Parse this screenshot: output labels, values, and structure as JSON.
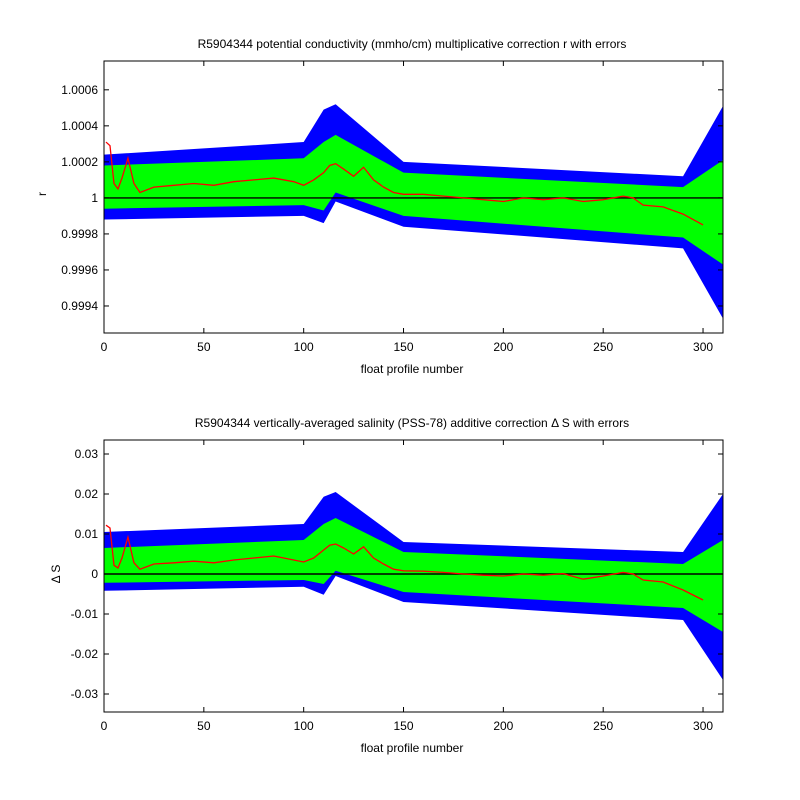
{
  "chart_data": [
    {
      "type": "area",
      "title": "R5904344 potential conductivity (mmho/cm) multiplicative correction r with errors",
      "xlabel": "float profile number",
      "ylabel": "r",
      "xlim": [
        0,
        310
      ],
      "ylim": [
        0.99925,
        1.00076
      ],
      "xticks": [
        0,
        50,
        100,
        150,
        200,
        250,
        300
      ],
      "xtick_labels": [
        "0",
        "50",
        "100",
        "150",
        "200",
        "250",
        "300"
      ],
      "yticks": [
        0.9994,
        0.9996,
        0.9998,
        1.0,
        1.0002,
        1.0004,
        1.0006
      ],
      "ytick_labels": [
        "0.9994",
        "0.9996",
        "0.9998",
        "1",
        "1.0002",
        "1.0004",
        "1.0006"
      ],
      "reference_line": 1.0,
      "grid": false,
      "colors": {
        "outer_band": "#0000ff",
        "inner_band": "#00ff00",
        "correction": "#ff0000",
        "reference": "#000000"
      },
      "series": [
        {
          "x": [
            0,
            100,
            110,
            116,
            150,
            290,
            310
          ],
          "upper": [
            1.00024,
            1.00031,
            1.00049,
            1.00052,
            1.0002,
            1.00012,
            1.00051
          ],
          "lower": [
            0.99988,
            0.9999,
            0.99986,
            0.99998,
            0.99984,
            0.99972,
            0.99933
          ]
        },
        {
          "x": [
            0,
            100,
            110,
            116,
            150,
            290,
            310
          ],
          "upper": [
            1.00018,
            1.00022,
            1.00031,
            1.00035,
            1.00014,
            1.00006,
            1.00021
          ],
          "lower": [
            0.99994,
            0.99996,
            0.99993,
            1.00003,
            0.9999,
            0.99978,
            0.99963
          ]
        },
        {
          "x": [
            1,
            3,
            5,
            7,
            9,
            12,
            15,
            18,
            25,
            35,
            45,
            55,
            65,
            75,
            85,
            95,
            100,
            105,
            110,
            113,
            116,
            120,
            125,
            130,
            135,
            140,
            145,
            150,
            160,
            170,
            180,
            190,
            200,
            210,
            220,
            230,
            240,
            250,
            260,
            265,
            270,
            280,
            290,
            300
          ],
          "values": [
            1.00031,
            1.00029,
            1.00008,
            1.00005,
            1.00011,
            1.00022,
            1.00008,
            1.00003,
            1.00006,
            1.00007,
            1.00008,
            1.00007,
            1.00009,
            1.0001,
            1.00011,
            1.00009,
            1.00007,
            1.0001,
            1.00014,
            1.00018,
            1.00019,
            1.00016,
            1.00012,
            1.00017,
            1.0001,
            1.00006,
            1.00003,
            1.00002,
            1.00002,
            1.00001,
            1.0,
            0.99999,
            0.99998,
            1.0,
            0.99999,
            1.0,
            0.99998,
            0.99999,
            1.00001,
            1.0,
            0.99996,
            0.99995,
            0.99991,
            0.99985
          ]
        }
      ]
    },
    {
      "type": "area",
      "title": "R5904344 vertically-averaged salinity (PSS-78) additive correction Δ S with errors",
      "xlabel": "float profile number",
      "ylabel": "Δ S",
      "xlim": [
        0,
        310
      ],
      "ylim": [
        -0.0345,
        0.0335
      ],
      "xticks": [
        0,
        50,
        100,
        150,
        200,
        250,
        300
      ],
      "xtick_labels": [
        "0",
        "50",
        "100",
        "150",
        "200",
        "250",
        "300"
      ],
      "yticks": [
        -0.03,
        -0.02,
        -0.01,
        0,
        0.01,
        0.02,
        0.03
      ],
      "ytick_labels": [
        "-0.03",
        "-0.02",
        "-0.01",
        "0",
        "0.01",
        "0.02",
        "0.03"
      ],
      "reference_line": 0,
      "grid": false,
      "colors": {
        "outer_band": "#0000ff",
        "inner_band": "#00ff00",
        "correction": "#ff0000",
        "reference": "#000000"
      },
      "series": [
        {
          "x": [
            0,
            100,
            110,
            116,
            150,
            290,
            310
          ],
          "upper": [
            0.0105,
            0.0125,
            0.0193,
            0.0205,
            0.008,
            0.0055,
            0.02
          ],
          "lower": [
            -0.0042,
            -0.0032,
            -0.0052,
            -0.0005,
            -0.007,
            -0.0115,
            -0.0265
          ]
        },
        {
          "x": [
            0,
            100,
            110,
            116,
            150,
            290,
            310
          ],
          "upper": [
            0.0065,
            0.0085,
            0.0125,
            0.014,
            0.0055,
            0.0025,
            0.0085
          ],
          "lower": [
            -0.0022,
            -0.0015,
            -0.0025,
            0.0008,
            -0.0045,
            -0.0085,
            -0.0145
          ]
        },
        {
          "x": [
            1,
            3,
            5,
            7,
            9,
            12,
            15,
            18,
            25,
            35,
            45,
            55,
            65,
            75,
            85,
            95,
            100,
            105,
            110,
            113,
            116,
            120,
            125,
            130,
            135,
            140,
            145,
            150,
            160,
            170,
            180,
            190,
            200,
            210,
            220,
            230,
            240,
            250,
            260,
            265,
            270,
            280,
            290,
            300
          ],
          "values": [
            0.0122,
            0.0115,
            0.0022,
            0.0015,
            0.004,
            0.0092,
            0.0028,
            0.0012,
            0.0025,
            0.0028,
            0.0032,
            0.0028,
            0.0035,
            0.004,
            0.0045,
            0.0035,
            0.003,
            0.004,
            0.006,
            0.0072,
            0.0075,
            0.0065,
            0.005,
            0.0068,
            0.004,
            0.0025,
            0.0012,
            0.0008,
            0.0007,
            0.0004,
            0.0,
            -0.0003,
            -0.0005,
            0.0,
            -0.0003,
            0.0001,
            -0.0013,
            -0.0005,
            0.0004,
            0.0,
            -0.0015,
            -0.002,
            -0.004,
            -0.0065
          ]
        }
      ]
    }
  ]
}
